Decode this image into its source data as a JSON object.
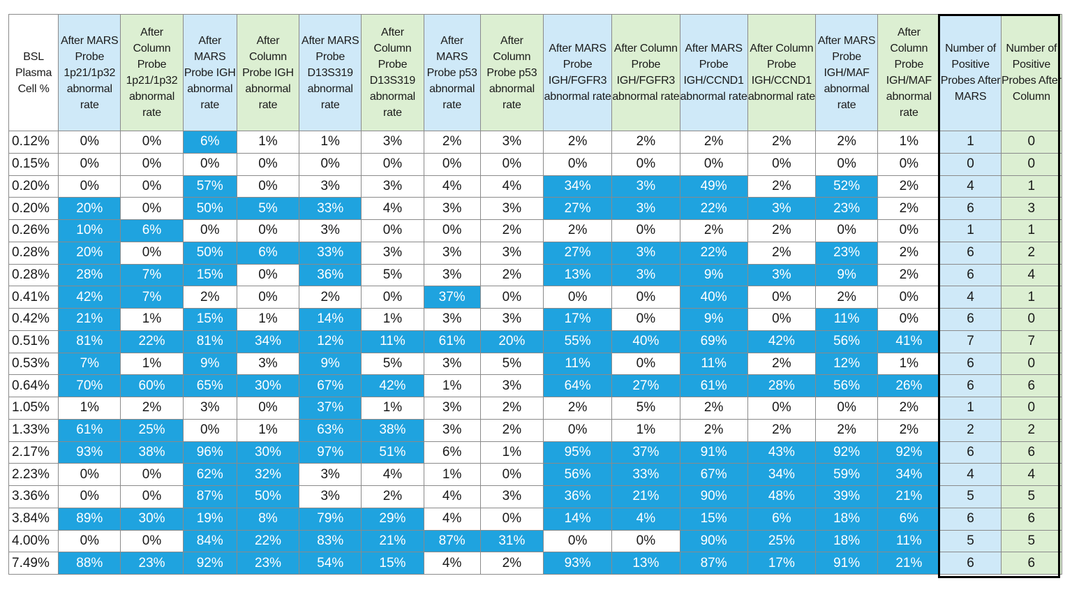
{
  "colors": {
    "header_mars": "#cfe9f8",
    "header_column": "#dcefd2",
    "highlight": "#1fa3df",
    "highlight_text": "#ffffff",
    "count_box_border": "#000000"
  },
  "table": {
    "headers": [
      {
        "label": "BSL Plasma Cell %",
        "kind": "label"
      },
      {
        "label": "After MARS Probe 1p21/1p32 abnormal rate",
        "kind": "mars"
      },
      {
        "label": "After Column Probe 1p21/1p32 abnormal rate",
        "kind": "col"
      },
      {
        "label": "After MARS Probe IGH abnormal rate",
        "kind": "mars"
      },
      {
        "label": "After Column Probe IGH abnormal rate",
        "kind": "col"
      },
      {
        "label": "After MARS Probe D13S319 abnormal rate",
        "kind": "mars"
      },
      {
        "label": "After Column Probe D13S319 abnormal rate",
        "kind": "col"
      },
      {
        "label": "After MARS Probe p53 abnormal rate",
        "kind": "mars"
      },
      {
        "label": "After Column Probe p53 abnormal rate",
        "kind": "col"
      },
      {
        "label": "After MARS Probe IGH/FGFR3 abnormal rate",
        "kind": "mars"
      },
      {
        "label": "After Column Probe IGH/FGFR3 abnormal rate",
        "kind": "col"
      },
      {
        "label": "After MARS Probe IGH/CCND1 abnormal rate",
        "kind": "mars"
      },
      {
        "label": "After Column Probe IGH/CCND1 abnormal rate",
        "kind": "col"
      },
      {
        "label": "After MARS Probe IGH/MAF abnormal rate",
        "kind": "mars"
      },
      {
        "label": "After Column Probe IGH/MAF abnormal rate",
        "kind": "col"
      },
      {
        "label": "Number of Positive Probes After MARS",
        "kind": "mars"
      },
      {
        "label": "Number of Positive Probes After Column",
        "kind": "col"
      }
    ],
    "rows": [
      {
        "bsl": "0.12%",
        "values": [
          "0%",
          "0%",
          "6%",
          "1%",
          "1%",
          "3%",
          "2%",
          "3%",
          "2%",
          "2%",
          "2%",
          "2%",
          "2%",
          "1%"
        ],
        "highlight": [
          0,
          0,
          1,
          0,
          0,
          0,
          0,
          0,
          0,
          0,
          0,
          0,
          0,
          0
        ],
        "mars_count": "1",
        "col_count": "0"
      },
      {
        "bsl": "0.15%",
        "values": [
          "0%",
          "0%",
          "0%",
          "0%",
          "0%",
          "0%",
          "0%",
          "0%",
          "0%",
          "0%",
          "0%",
          "0%",
          "0%",
          "0%"
        ],
        "highlight": [
          0,
          0,
          0,
          0,
          0,
          0,
          0,
          0,
          0,
          0,
          0,
          0,
          0,
          0
        ],
        "mars_count": "0",
        "col_count": "0"
      },
      {
        "bsl": "0.20%",
        "values": [
          "0%",
          "0%",
          "57%",
          "0%",
          "3%",
          "3%",
          "4%",
          "4%",
          "34%",
          "3%",
          "49%",
          "2%",
          "52%",
          "2%"
        ],
        "highlight": [
          0,
          0,
          1,
          0,
          0,
          0,
          0,
          0,
          1,
          1,
          1,
          0,
          1,
          0
        ],
        "mars_count": "4",
        "col_count": "1"
      },
      {
        "bsl": "0.20%",
        "values": [
          "20%",
          "0%",
          "50%",
          "5%",
          "33%",
          "4%",
          "3%",
          "3%",
          "27%",
          "3%",
          "22%",
          "3%",
          "23%",
          "2%"
        ],
        "highlight": [
          1,
          0,
          1,
          1,
          1,
          0,
          0,
          0,
          1,
          1,
          1,
          1,
          1,
          0
        ],
        "mars_count": "6",
        "col_count": "3"
      },
      {
        "bsl": "0.26%",
        "values": [
          "10%",
          "6%",
          "0%",
          "0%",
          "3%",
          "0%",
          "0%",
          "2%",
          "2%",
          "0%",
          "2%",
          "2%",
          "0%",
          "0%"
        ],
        "highlight": [
          1,
          1,
          0,
          0,
          0,
          0,
          0,
          0,
          0,
          0,
          0,
          0,
          0,
          0
        ],
        "mars_count": "1",
        "col_count": "1"
      },
      {
        "bsl": "0.28%",
        "values": [
          "20%",
          "0%",
          "50%",
          "6%",
          "33%",
          "3%",
          "3%",
          "3%",
          "27%",
          "3%",
          "22%",
          "2%",
          "23%",
          "2%"
        ],
        "highlight": [
          1,
          0,
          1,
          1,
          1,
          0,
          0,
          0,
          1,
          1,
          1,
          0,
          1,
          0
        ],
        "mars_count": "6",
        "col_count": "2"
      },
      {
        "bsl": "0.28%",
        "values": [
          "28%",
          "7%",
          "15%",
          "0%",
          "36%",
          "5%",
          "3%",
          "2%",
          "13%",
          "3%",
          "9%",
          "3%",
          "9%",
          "2%"
        ],
        "highlight": [
          1,
          1,
          1,
          0,
          1,
          0,
          0,
          0,
          1,
          1,
          1,
          1,
          1,
          0
        ],
        "mars_count": "6",
        "col_count": "4"
      },
      {
        "bsl": "0.41%",
        "values": [
          "42%",
          "7%",
          "2%",
          "0%",
          "2%",
          "0%",
          "37%",
          "0%",
          "0%",
          "0%",
          "40%",
          "0%",
          "2%",
          "0%"
        ],
        "highlight": [
          1,
          1,
          0,
          0,
          0,
          0,
          1,
          0,
          0,
          0,
          1,
          0,
          0,
          0
        ],
        "mars_count": "4",
        "col_count": "1"
      },
      {
        "bsl": "0.42%",
        "values": [
          "21%",
          "1%",
          "15%",
          "1%",
          "14%",
          "1%",
          "3%",
          "3%",
          "17%",
          "0%",
          "9%",
          "0%",
          "11%",
          "0%"
        ],
        "highlight": [
          1,
          0,
          1,
          0,
          1,
          0,
          0,
          0,
          1,
          0,
          1,
          0,
          1,
          0
        ],
        "mars_count": "6",
        "col_count": "0"
      },
      {
        "bsl": "0.51%",
        "values": [
          "81%",
          "22%",
          "81%",
          "34%",
          "12%",
          "11%",
          "61%",
          "20%",
          "55%",
          "40%",
          "69%",
          "42%",
          "56%",
          "41%"
        ],
        "highlight": [
          1,
          1,
          1,
          1,
          1,
          1,
          1,
          1,
          1,
          1,
          1,
          1,
          1,
          1
        ],
        "mars_count": "7",
        "col_count": "7"
      },
      {
        "bsl": "0.53%",
        "values": [
          "7%",
          "1%",
          "9%",
          "3%",
          "9%",
          "5%",
          "3%",
          "5%",
          "11%",
          "0%",
          "11%",
          "2%",
          "12%",
          "1%"
        ],
        "highlight": [
          1,
          0,
          1,
          0,
          1,
          0,
          0,
          0,
          1,
          0,
          1,
          0,
          1,
          0
        ],
        "mars_count": "6",
        "col_count": "0"
      },
      {
        "bsl": "0.64%",
        "values": [
          "70%",
          "60%",
          "65%",
          "30%",
          "67%",
          "42%",
          "1%",
          "3%",
          "64%",
          "27%",
          "61%",
          "28%",
          "56%",
          "26%"
        ],
        "highlight": [
          1,
          1,
          1,
          1,
          1,
          1,
          0,
          0,
          1,
          1,
          1,
          1,
          1,
          1
        ],
        "mars_count": "6",
        "col_count": "6"
      },
      {
        "bsl": "1.05%",
        "values": [
          "1%",
          "2%",
          "3%",
          "0%",
          "37%",
          "1%",
          "3%",
          "2%",
          "2%",
          "5%",
          "2%",
          "0%",
          "0%",
          "2%"
        ],
        "highlight": [
          0,
          0,
          0,
          0,
          1,
          0,
          0,
          0,
          0,
          0,
          0,
          0,
          0,
          0
        ],
        "mars_count": "1",
        "col_count": "0"
      },
      {
        "bsl": "1.33%",
        "values": [
          "61%",
          "25%",
          "0%",
          "1%",
          "63%",
          "38%",
          "3%",
          "2%",
          "0%",
          "1%",
          "2%",
          "2%",
          "2%",
          "2%"
        ],
        "highlight": [
          1,
          1,
          0,
          0,
          1,
          1,
          0,
          0,
          0,
          0,
          0,
          0,
          0,
          0
        ],
        "mars_count": "2",
        "col_count": "2"
      },
      {
        "bsl": "2.17%",
        "values": [
          "93%",
          "38%",
          "96%",
          "30%",
          "97%",
          "51%",
          "6%",
          "1%",
          "95%",
          "37%",
          "91%",
          "43%",
          "92%",
          "92%"
        ],
        "highlight": [
          1,
          1,
          1,
          1,
          1,
          1,
          0,
          0,
          1,
          1,
          1,
          1,
          1,
          1
        ],
        "mars_count": "6",
        "col_count": "6"
      },
      {
        "bsl": "2.23%",
        "values": [
          "0%",
          "0%",
          "62%",
          "32%",
          "3%",
          "4%",
          "1%",
          "0%",
          "56%",
          "33%",
          "67%",
          "34%",
          "59%",
          "34%"
        ],
        "highlight": [
          0,
          0,
          1,
          1,
          0,
          0,
          0,
          0,
          1,
          1,
          1,
          1,
          1,
          1
        ],
        "mars_count": "4",
        "col_count": "4"
      },
      {
        "bsl": "3.36%",
        "values": [
          "0%",
          "0%",
          "87%",
          "50%",
          "3%",
          "2%",
          "4%",
          "3%",
          "36%",
          "21%",
          "90%",
          "48%",
          "39%",
          "21%"
        ],
        "highlight": [
          0,
          0,
          1,
          1,
          0,
          0,
          0,
          0,
          1,
          1,
          1,
          1,
          1,
          1
        ],
        "mars_count": "5",
        "col_count": "5"
      },
      {
        "bsl": "3.84%",
        "values": [
          "89%",
          "30%",
          "19%",
          "8%",
          "79%",
          "29%",
          "4%",
          "0%",
          "14%",
          "4%",
          "15%",
          "6%",
          "18%",
          "6%"
        ],
        "highlight": [
          1,
          1,
          1,
          1,
          1,
          1,
          0,
          0,
          1,
          1,
          1,
          1,
          1,
          1
        ],
        "mars_count": "6",
        "col_count": "6"
      },
      {
        "bsl": "4.00%",
        "values": [
          "0%",
          "0%",
          "84%",
          "22%",
          "83%",
          "21%",
          "87%",
          "31%",
          "0%",
          "0%",
          "90%",
          "25%",
          "18%",
          "11%"
        ],
        "highlight": [
          0,
          0,
          1,
          1,
          1,
          1,
          1,
          1,
          0,
          0,
          1,
          1,
          1,
          1
        ],
        "mars_count": "5",
        "col_count": "5"
      },
      {
        "bsl": "7.49%",
        "values": [
          "88%",
          "23%",
          "92%",
          "23%",
          "54%",
          "15%",
          "4%",
          "2%",
          "93%",
          "13%",
          "87%",
          "17%",
          "91%",
          "21%"
        ],
        "highlight": [
          1,
          1,
          1,
          1,
          1,
          1,
          0,
          0,
          1,
          1,
          1,
          1,
          1,
          1
        ],
        "mars_count": "6",
        "col_count": "6"
      }
    ]
  }
}
